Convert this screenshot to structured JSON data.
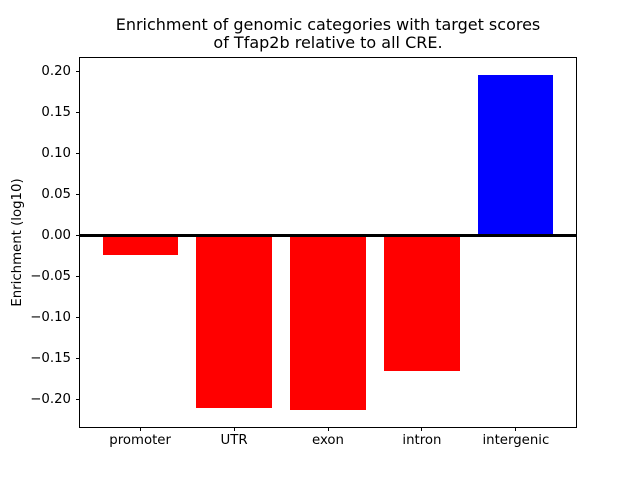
{
  "figure": {
    "title_line1": "Enrichment of genomic categories with target scores",
    "title_line2": "of Tfap2b relative to all CRE."
  },
  "chart_data": {
    "type": "bar",
    "title": "Enrichment of genomic categories with target scores\nof Tfap2b relative to all CRE.",
    "categories": [
      "promoter",
      "UTR",
      "exon",
      "intron",
      "intergenic"
    ],
    "values": [
      -0.023,
      -0.21,
      -0.212,
      -0.165,
      0.196
    ],
    "bar_colors": [
      "#ff0000",
      "#ff0000",
      "#ff0000",
      "#ff0000",
      "#0000ff"
    ],
    "negative_color": "#ff0000",
    "positive_color": "#0000ff",
    "xlabel": "",
    "ylabel": "Enrichment (log10)",
    "ylim": [
      -0.233,
      0.2165
    ],
    "yticks": [
      0.2,
      0.15,
      0.1,
      0.05,
      0.0,
      -0.05,
      -0.1,
      -0.15,
      -0.2
    ],
    "ytick_labels": [
      "0.20",
      "0.15",
      "0.10",
      "0.05",
      "0.00",
      "−0.05",
      "−0.10",
      "−0.15",
      "−0.20"
    ],
    "zero_line": true,
    "bar_width_fraction": 0.8,
    "grid": false,
    "legend": false,
    "background": "#ffffff",
    "axes_color": "#000000"
  }
}
